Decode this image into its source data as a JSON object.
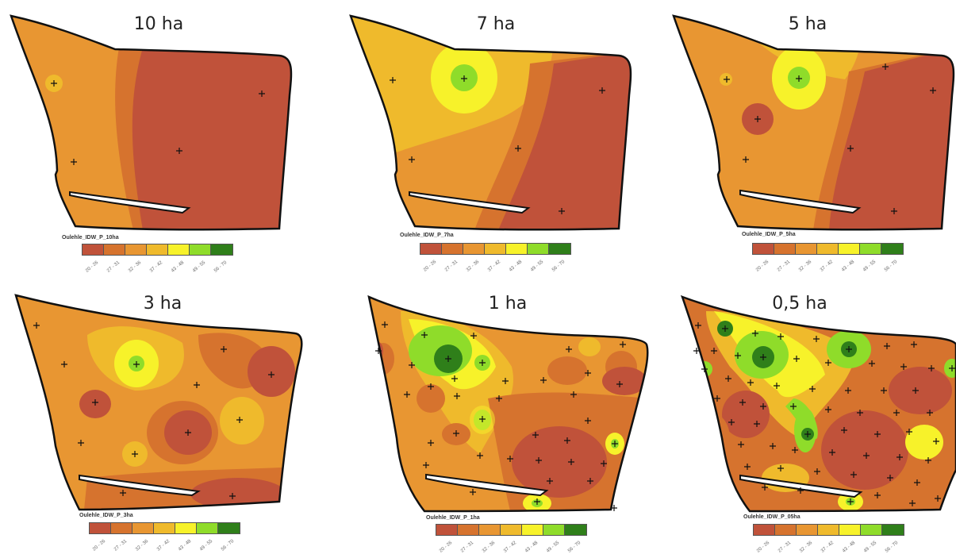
{
  "colors": {
    "class_1": "#c0523a",
    "class_2": "#d6732e",
    "class_3": "#e89632",
    "class_4": "#efba2c",
    "class_5": "#f7f22a",
    "class_6": "#8fdc2a",
    "class_7": "#2f7f1a",
    "outline": "#111111",
    "pond": "#ffffff"
  },
  "legend_classes": [
    "20 - 26",
    "27 - 31",
    "32 - 36",
    "37 - 42",
    "43 - 48",
    "49 - 55",
    "56 - 70"
  ],
  "panels": [
    {
      "title": "10 ha",
      "legend_title": "Oulehle_IDW_P_10ha"
    },
    {
      "title": "7 ha",
      "legend_title": "Oulehle_IDW_P_7ha"
    },
    {
      "title": "5 ha",
      "legend_title": "Oulehle_IDW_P_5ha"
    },
    {
      "title": "3 ha",
      "legend_title": "Oulehle_IDW_P_3ha"
    },
    {
      "title": "1 ha",
      "legend_title": "Oulehle_IDW_P_1ha"
    },
    {
      "title": "0,5 ha",
      "legend_title": "Oulehle_IDW_P_05ha"
    }
  ]
}
